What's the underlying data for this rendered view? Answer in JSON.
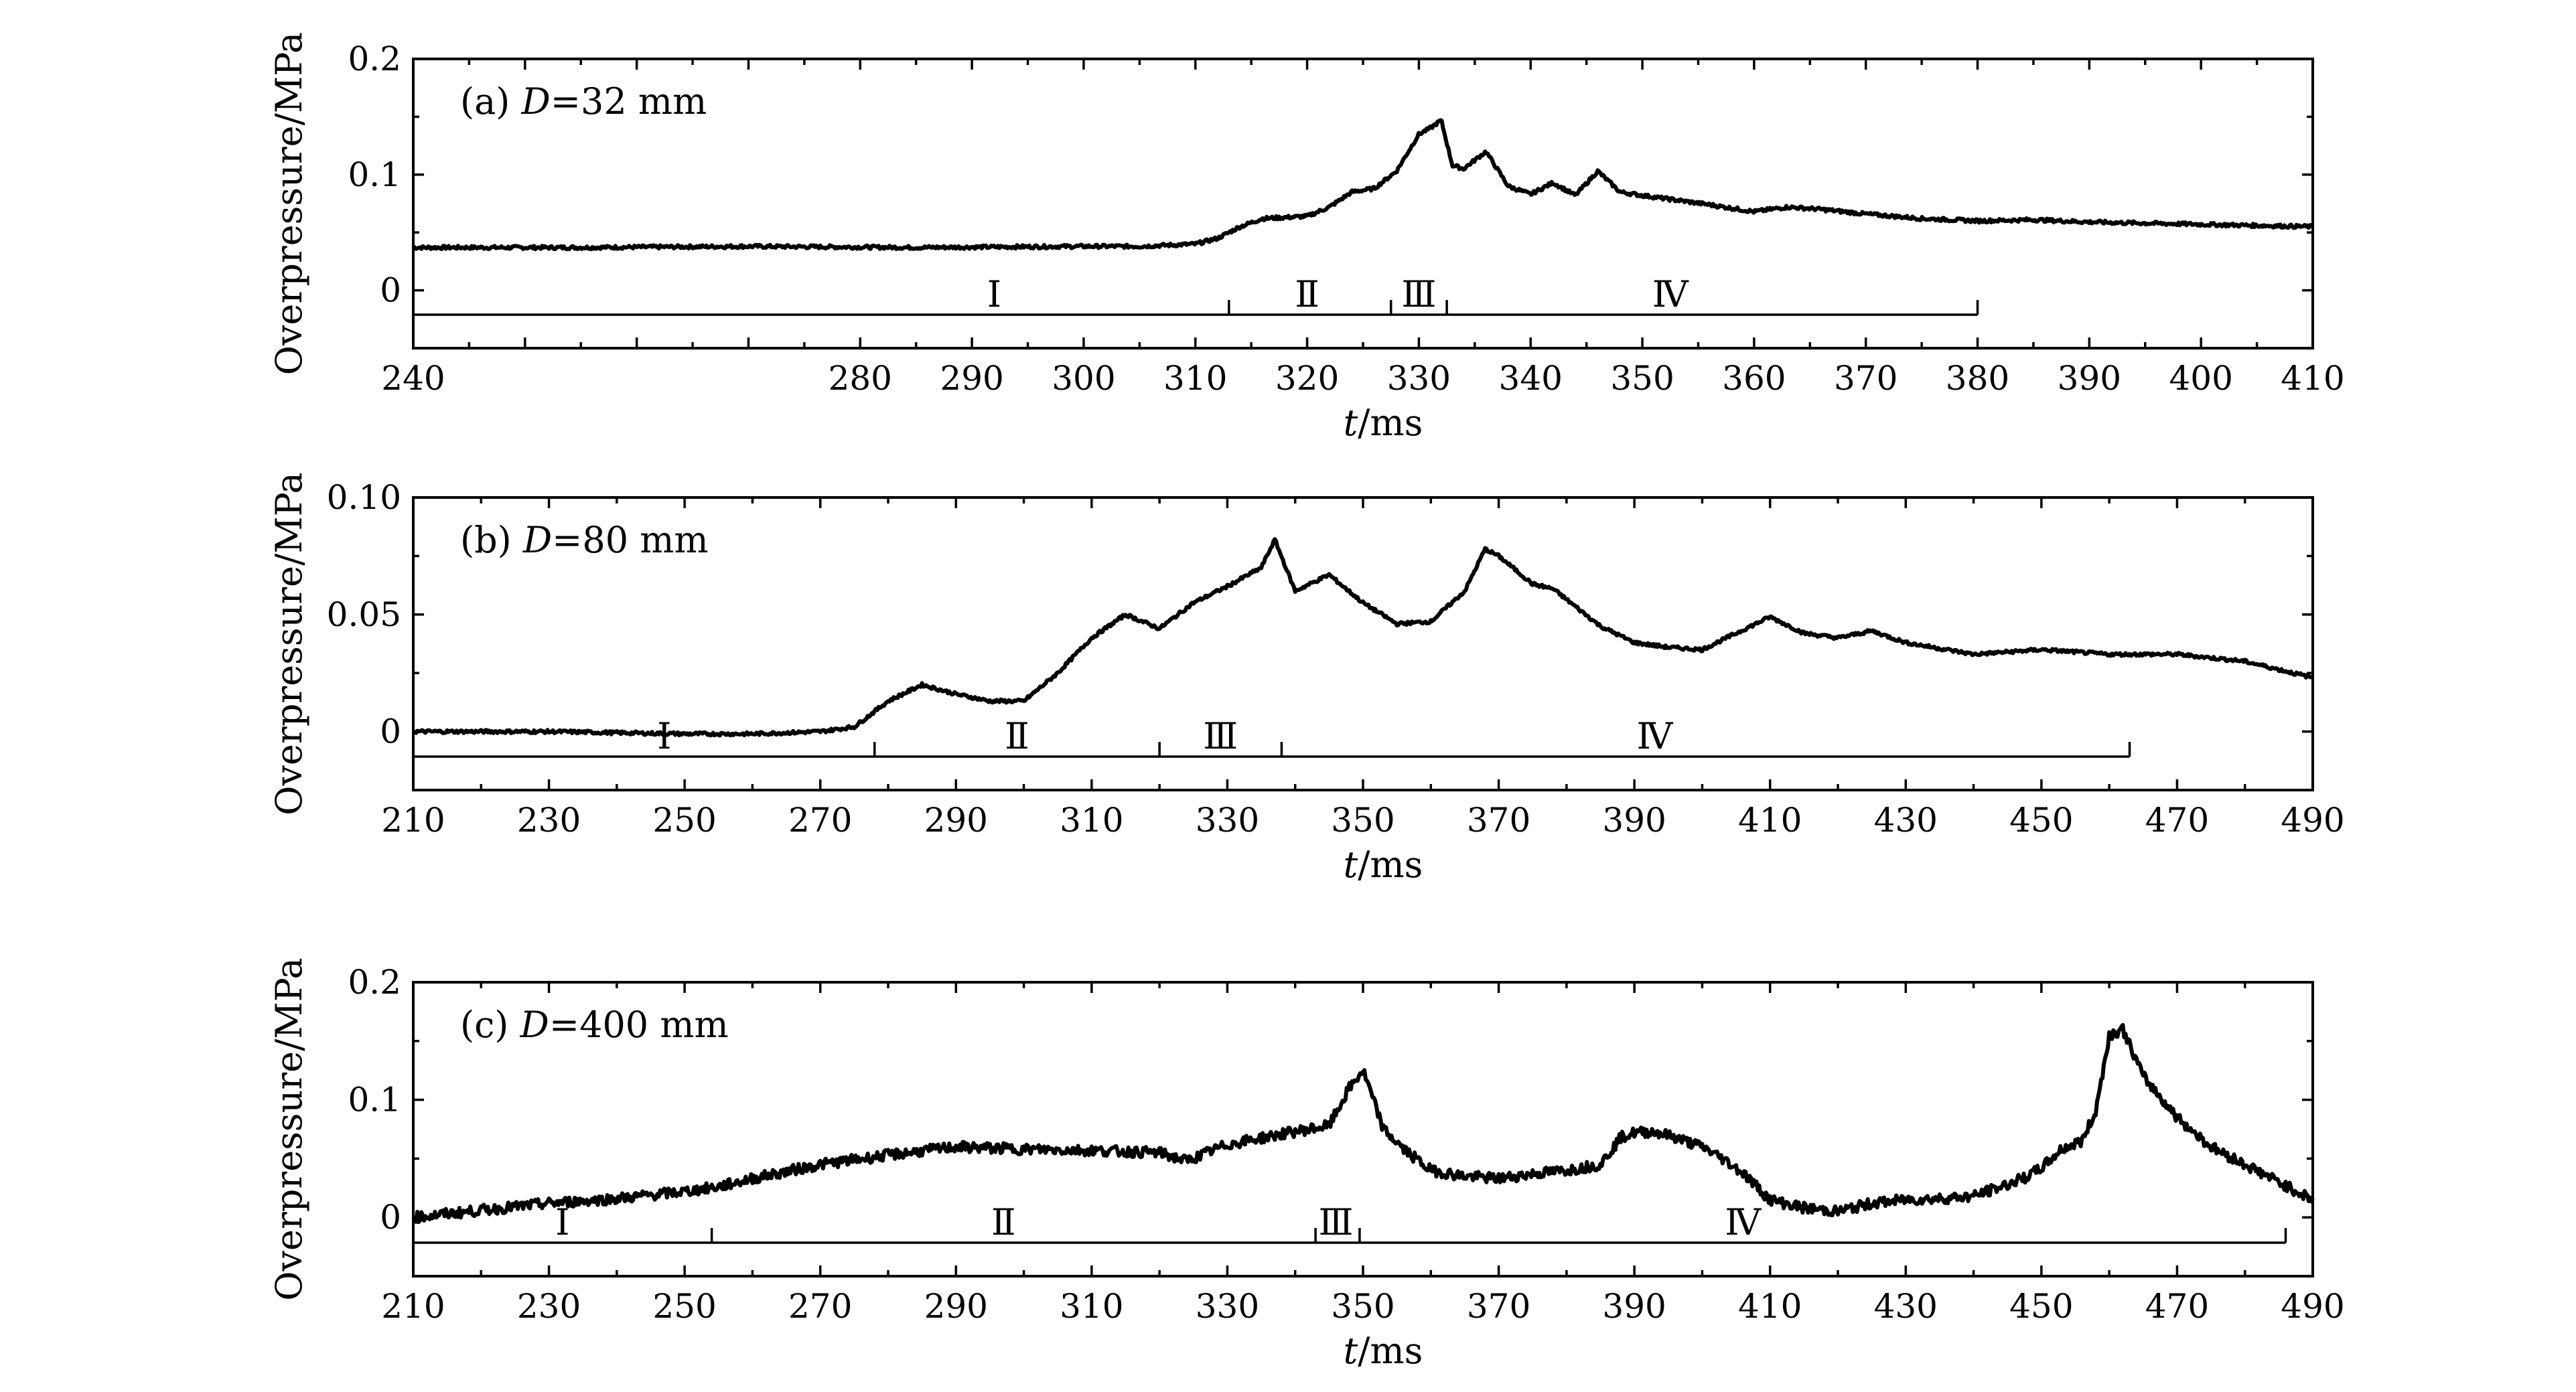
{
  "chart_data": [
    {
      "type": "line",
      "panel_label": "(a) ",
      "panel_label_italic": "D",
      "panel_label_rest": "=32 mm",
      "xlabel_italic": "t",
      "xlabel_rest": "/ms",
      "ylabel": "Overpressure/MPa",
      "xlim": [
        240,
        410
      ],
      "ylim": [
        -0.05,
        0.2
      ],
      "xticks": [
        240,
        250,
        260,
        270,
        280,
        290,
        300,
        310,
        320,
        330,
        340,
        350,
        360,
        370,
        380,
        390,
        400,
        410
      ],
      "xtick_labels": [
        "240",
        "",
        "",
        "",
        "280",
        "290",
        "300",
        "310",
        "320",
        "330",
        "340",
        "350",
        "360",
        "370",
        "380",
        "390",
        "400",
        "410"
      ],
      "yticks": [
        0,
        0.1,
        0.2
      ],
      "ytick_labels": [
        "0",
        "0.1",
        "0.2"
      ],
      "grid": false,
      "series": [
        {
          "x": [
            240,
            255,
            270,
            285,
            300,
            305,
            310,
            312,
            314,
            316,
            318,
            320,
            322,
            324,
            326,
            328,
            330,
            331,
            332,
            333,
            334,
            336,
            338,
            340,
            342,
            344,
            346,
            348,
            350,
            353,
            356,
            360,
            363,
            366,
            370,
            375,
            380,
            385,
            390,
            395,
            400,
            405,
            410
          ],
          "y": [
            0.037,
            0.037,
            0.038,
            0.037,
            0.038,
            0.038,
            0.04,
            0.045,
            0.055,
            0.062,
            0.063,
            0.064,
            0.072,
            0.085,
            0.088,
            0.103,
            0.135,
            0.14,
            0.147,
            0.108,
            0.105,
            0.12,
            0.09,
            0.083,
            0.093,
            0.082,
            0.103,
            0.085,
            0.082,
            0.078,
            0.074,
            0.068,
            0.072,
            0.07,
            0.066,
            0.062,
            0.06,
            0.061,
            0.059,
            0.058,
            0.057,
            0.056,
            0.055
          ]
        }
      ],
      "stage_boundaries": [
        240,
        313,
        327.5,
        332.5,
        380
      ],
      "stage_labels": [
        "Ⅰ",
        "Ⅱ",
        "Ⅲ",
        "Ⅳ"
      ],
      "stage_label_x": [
        292,
        320,
        330,
        352.5
      ]
    },
    {
      "type": "line",
      "panel_label": "(b) ",
      "panel_label_italic": "D",
      "panel_label_rest": "=80 mm",
      "xlabel_italic": "t",
      "xlabel_rest": "/ms",
      "ylabel": "Overpressure/MPa",
      "xlim": [
        210,
        490
      ],
      "ylim": [
        -0.025,
        0.1
      ],
      "xticks": [
        210,
        230,
        250,
        270,
        290,
        310,
        330,
        350,
        370,
        390,
        410,
        430,
        450,
        470,
        490
      ],
      "xtick_labels": [
        "210",
        "230",
        "250",
        "270",
        "290",
        "310",
        "330",
        "350",
        "370",
        "390",
        "410",
        "430",
        "450",
        "470",
        "490"
      ],
      "yticks": [
        0,
        0.05,
        0.1
      ],
      "ytick_labels": [
        "0",
        "0.05",
        "0.10"
      ],
      "grid": false,
      "series": [
        {
          "x": [
            210,
            230,
            250,
            260,
            270,
            275,
            280,
            285,
            290,
            295,
            300,
            305,
            310,
            315,
            320,
            325,
            330,
            335,
            337,
            340,
            345,
            350,
            355,
            360,
            365,
            368,
            370,
            375,
            378,
            385,
            390,
            395,
            400,
            405,
            410,
            415,
            420,
            425,
            430,
            440,
            450,
            460,
            470,
            480,
            490
          ],
          "y": [
            0,
            0,
            -0.001,
            -0.001,
            0.0,
            0.002,
            0.013,
            0.02,
            0.016,
            0.013,
            0.013,
            0.025,
            0.04,
            0.05,
            0.044,
            0.055,
            0.062,
            0.07,
            0.082,
            0.06,
            0.067,
            0.055,
            0.046,
            0.047,
            0.06,
            0.078,
            0.075,
            0.063,
            0.061,
            0.045,
            0.038,
            0.036,
            0.035,
            0.042,
            0.049,
            0.042,
            0.04,
            0.043,
            0.038,
            0.033,
            0.035,
            0.033,
            0.033,
            0.03,
            0.023
          ]
        }
      ],
      "stage_boundaries": [
        210,
        278,
        320,
        338,
        463
      ],
      "stage_labels": [
        "Ⅰ",
        "Ⅱ",
        "Ⅲ",
        "Ⅳ"
      ],
      "stage_label_x": [
        247,
        299,
        329,
        393
      ]
    },
    {
      "type": "line",
      "panel_label": "(c) ",
      "panel_label_italic": "D",
      "panel_label_rest": "=400 mm",
      "xlabel_italic": "t",
      "xlabel_rest": "/ms",
      "ylabel": "Overpressure/MPa",
      "xlim": [
        210,
        490
      ],
      "ylim": [
        -0.05,
        0.2
      ],
      "xticks": [
        210,
        230,
        250,
        270,
        290,
        310,
        330,
        350,
        370,
        390,
        410,
        430,
        450,
        470,
        490
      ],
      "xtick_labels": [
        "210",
        "230",
        "250",
        "270",
        "290",
        "310",
        "330",
        "350",
        "370",
        "390",
        "410",
        "430",
        "450",
        "470",
        "490"
      ],
      "yticks": [
        0,
        0.1,
        0.2
      ],
      "ytick_labels": [
        "0",
        "0.1",
        "0.2"
      ],
      "grid": false,
      "series": [
        {
          "x": [
            210,
            220,
            230,
            240,
            250,
            255,
            260,
            270,
            280,
            290,
            300,
            310,
            320,
            324,
            330,
            340,
            345,
            348,
            350,
            353,
            356,
            360,
            365,
            370,
            375,
            380,
            385,
            388,
            390,
            393,
            396,
            400,
            403,
            406,
            410,
            415,
            420,
            425,
            430,
            435,
            440,
            445,
            448,
            450,
            453,
            456,
            458,
            460,
            462,
            465,
            470,
            475,
            480,
            485,
            490
          ],
          "y": [
            0.0,
            0.006,
            0.012,
            0.016,
            0.022,
            0.026,
            0.033,
            0.045,
            0.053,
            0.06,
            0.058,
            0.057,
            0.055,
            0.048,
            0.062,
            0.073,
            0.078,
            0.11,
            0.125,
            0.075,
            0.058,
            0.04,
            0.035,
            0.033,
            0.037,
            0.04,
            0.045,
            0.068,
            0.072,
            0.073,
            0.068,
            0.06,
            0.05,
            0.038,
            0.015,
            0.008,
            0.005,
            0.012,
            0.015,
            0.016,
            0.018,
            0.028,
            0.035,
            0.042,
            0.058,
            0.065,
            0.09,
            0.155,
            0.16,
            0.12,
            0.085,
            0.06,
            0.045,
            0.03,
            0.015
          ]
        }
      ],
      "stage_boundaries": [
        210,
        254,
        343,
        349.5,
        486
      ],
      "stage_labels": [
        "Ⅰ",
        "Ⅱ",
        "Ⅲ",
        "Ⅳ"
      ],
      "stage_label_x": [
        232,
        297,
        346,
        406
      ]
    }
  ]
}
